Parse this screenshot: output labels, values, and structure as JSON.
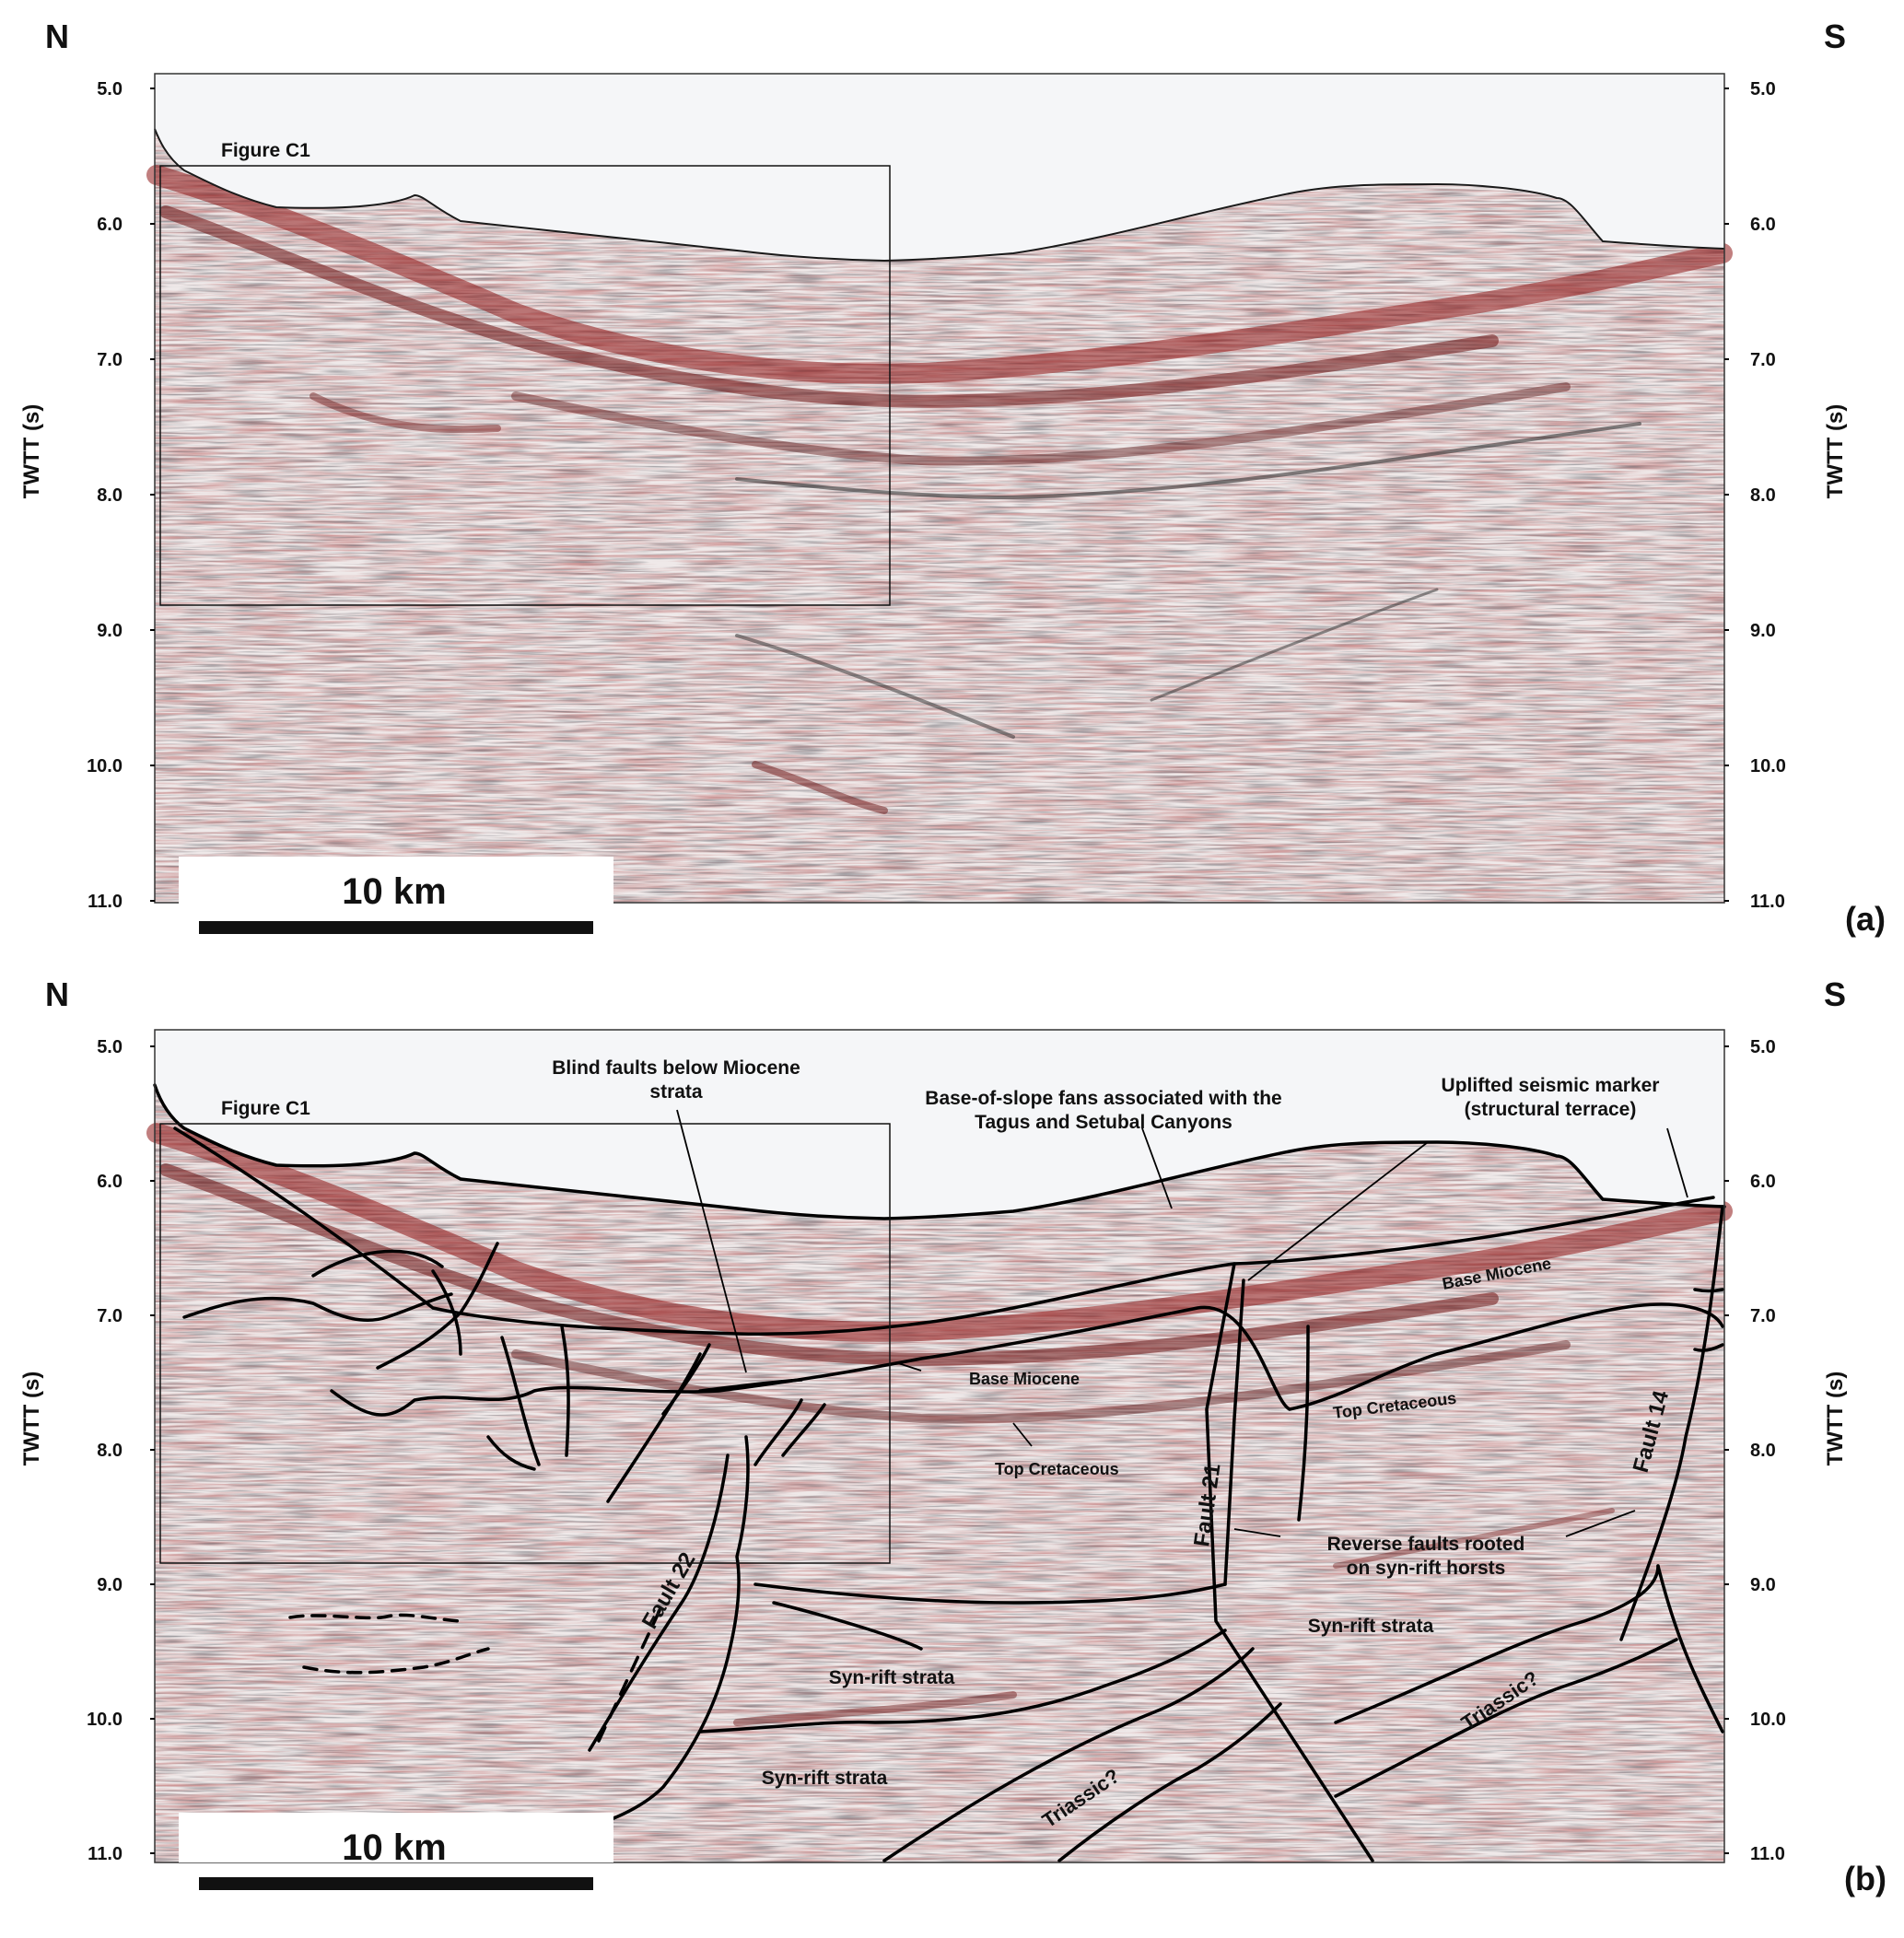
{
  "panels": [
    {
      "id": "a",
      "panel_label": "(a)",
      "compass_left": "N",
      "compass_right": "S",
      "axis_title": "TWTT (s)",
      "ticks": [
        "5.0",
        "6.0",
        "7.0",
        "8.0",
        "9.0",
        "10.0",
        "11.0"
      ],
      "scale_bar_label": "10 km",
      "inset_box_label": "Figure C1"
    },
    {
      "id": "b",
      "panel_label": "(b)",
      "compass_left": "N",
      "compass_right": "S",
      "axis_title": "TWTT (s)",
      "ticks": [
        "5.0",
        "6.0",
        "7.0",
        "8.0",
        "9.0",
        "10.0",
        "11.0"
      ],
      "scale_bar_label": "10 km",
      "inset_box_label": "Figure C1",
      "annotations": {
        "blind_faults_1": "Blind faults below Miocene",
        "blind_faults_2": "strata",
        "fans_1": "Base-of-slope fans associated with the",
        "fans_2": "Tagus and Setubal Canyons",
        "uplifted_1": "Uplifted seismic marker",
        "uplifted_2": "(structural terrace)",
        "base_miocene_left": "Base Miocene",
        "base_miocene_right": "Base Miocene",
        "top_cret_left": "Top Cretaceous",
        "top_cret_right": "Top Cretaceous",
        "fault_22": "Fault 22",
        "fault_21": "Fault 21",
        "fault_14": "Fault 14",
        "reverse_1": "Reverse faults rooted",
        "reverse_2": "on syn-rift horsts",
        "synrift_right": "Syn-rift strata",
        "synrift_mid": "Syn-rift strata",
        "synrift_low": "Syn-rift strata",
        "triassic_mid": "Triassic?",
        "triassic_right": "Triassic?"
      }
    }
  ],
  "colors": {
    "water": "#f5f6f8",
    "seismic_base": "#efe9e9",
    "reflector_red": "#9e1b1b",
    "reflector_dark": "#2a2a2a",
    "interpretation": "#000000"
  }
}
